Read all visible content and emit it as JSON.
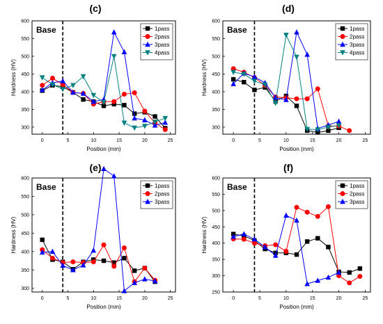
{
  "panels": [
    {
      "label": "(c)",
      "chart_data": {
        "type": "line",
        "annotation": "Base",
        "xlabel": "Position (mm)",
        "ylabel": "Hardness (HV)",
        "xlim": [
          -2,
          26
        ],
        "ylim": [
          280,
          600
        ],
        "xticks": [
          0,
          5,
          10,
          15,
          20,
          25
        ],
        "yticks": [
          300,
          350,
          400,
          450,
          500,
          550,
          600
        ],
        "base_line_x": 4,
        "legend_position": "top-right",
        "series": [
          {
            "name": "1pass",
            "color": "#000000",
            "marker": "square",
            "x": [
              0,
              2,
              4,
              6,
              8,
              10,
              12,
              14,
              16,
              18,
              20,
              22,
              24
            ],
            "y": [
              403,
              418,
              414,
              398,
              378,
              372,
              360,
              365,
              362,
              338,
              342,
              330,
              297
            ]
          },
          {
            "name": "2pass",
            "color": "#ff0000",
            "marker": "circle",
            "x": [
              0,
              2,
              4,
              6,
              8,
              10,
              12,
              14,
              16,
              18,
              20,
              22,
              24
            ],
            "y": [
              418,
              438,
              420,
              398,
              395,
              365,
              372,
              372,
              393,
              397,
              345,
              312,
              293
            ]
          },
          {
            "name": "3pass",
            "color": "#0000ff",
            "marker": "triangle-up",
            "x": [
              0,
              2,
              4,
              6,
              8,
              10,
              12,
              14,
              16,
              18,
              20,
              22,
              24
            ],
            "y": [
              405,
              425,
              430,
              398,
              395,
              372,
              378,
              568,
              512,
              325,
              320,
              305,
              313
            ]
          },
          {
            "name": "4pass",
            "color": "#008080",
            "marker": "triangle-down",
            "x": [
              0,
              2,
              4,
              6,
              8,
              10,
              12,
              14,
              16,
              18,
              20,
              22,
              24
            ],
            "y": [
              440,
              420,
              407,
              418,
              443,
              390,
              370,
              500,
              312,
              298,
              303,
              315,
              325
            ]
          }
        ]
      }
    },
    {
      "label": "(d)",
      "chart_data": {
        "type": "line",
        "annotation": "Base",
        "xlabel": "Position (mm)",
        "ylabel": "Hardness (HV)",
        "xlim": [
          -2,
          26
        ],
        "ylim": [
          280,
          600
        ],
        "xticks": [
          0,
          5,
          10,
          15,
          20,
          25
        ],
        "yticks": [
          300,
          350,
          400,
          450,
          500,
          550,
          600
        ],
        "base_line_x": 4,
        "legend_position": "top-right",
        "series": [
          {
            "name": "1pass",
            "color": "#000000",
            "marker": "square",
            "x": [
              0,
              2,
              4,
              6,
              8,
              10,
              12,
              14,
              16,
              18,
              20
            ],
            "y": [
              435,
              427,
              405,
              412,
              373,
              388,
              360,
              290,
              285,
              290,
              298
            ]
          },
          {
            "name": "2pass",
            "color": "#ff0000",
            "marker": "circle",
            "x": [
              0,
              2,
              4,
              6,
              8,
              10,
              12,
              14,
              16,
              18,
              20,
              22
            ],
            "y": [
              465,
              455,
              440,
              418,
              385,
              383,
              380,
              380,
              408,
              303,
              303,
              290
            ]
          },
          {
            "name": "3pass",
            "color": "#0000ff",
            "marker": "triangle-up",
            "x": [
              0,
              2,
              4,
              6,
              8,
              10,
              12,
              14,
              16,
              18,
              20
            ],
            "y": [
              422,
              452,
              442,
              425,
              383,
              377,
              568,
              505,
              296,
              306,
              316
            ]
          },
          {
            "name": "4pass",
            "color": "#008080",
            "marker": "triangle-down",
            "x": [
              0,
              2,
              4,
              6,
              8,
              10,
              12,
              14,
              16,
              18,
              20
            ],
            "y": [
              455,
              450,
              430,
              420,
              368,
              560,
              498,
              294,
              293,
              300,
              305
            ]
          }
        ]
      }
    },
    {
      "label": "(e)",
      "chart_data": {
        "type": "line",
        "annotation": "Base",
        "xlabel": "Position (mm)",
        "ylabel": "Hardness (HV)",
        "xlim": [
          -2,
          26
        ],
        "ylim": [
          290,
          600
        ],
        "xticks": [
          0,
          5,
          10,
          15,
          20,
          25
        ],
        "yticks": [
          300,
          350,
          400,
          450,
          500,
          550,
          600
        ],
        "base_line_x": 4,
        "legend_position": "top-right",
        "series": [
          {
            "name": "1pass",
            "color": "#000000",
            "marker": "square",
            "x": [
              0,
              2,
              4,
              6,
              8,
              10,
              12,
              14,
              16,
              18,
              20,
              22
            ],
            "y": [
              432,
              378,
              372,
              352,
              372,
              378,
              375,
              370,
              382,
              348,
              355,
              318
            ]
          },
          {
            "name": "2pass",
            "color": "#ff0000",
            "marker": "circle",
            "x": [
              0,
              2,
              4,
              6,
              8,
              10,
              12,
              14,
              16,
              18,
              20,
              22
            ],
            "y": [
              405,
              382,
              370,
              372,
              370,
              372,
              418,
              360,
              410,
              318,
              355,
              322
            ]
          },
          {
            "name": "3pass",
            "color": "#0000ff",
            "marker": "triangle-up",
            "x": [
              0,
              2,
              4,
              6,
              8,
              10,
              12,
              14,
              16,
              18,
              20,
              22
            ],
            "y": [
              398,
              400,
              362,
              350,
              363,
              403,
              625,
              605,
              293,
              315,
              325,
              320
            ]
          }
        ]
      }
    },
    {
      "label": "(f)",
      "chart_data": {
        "type": "line",
        "annotation": "Base",
        "xlabel": "Position (mm)",
        "ylabel": "Hardness (HV)",
        "xlim": [
          -2,
          26
        ],
        "ylim": [
          250,
          600
        ],
        "xticks": [
          0,
          5,
          10,
          15,
          20,
          25
        ],
        "yticks": [
          250,
          300,
          350,
          400,
          450,
          500,
          550,
          600
        ],
        "base_line_x": 4,
        "legend_position": "top-right",
        "series": [
          {
            "name": "1pass",
            "color": "#000000",
            "marker": "square",
            "x": [
              0,
              2,
              4,
              6,
              8,
              10,
              12,
              14,
              16,
              18,
              20,
              22,
              24
            ],
            "y": [
              428,
              422,
              408,
              382,
              370,
              370,
              365,
              405,
              415,
              388,
              312,
              310,
              322
            ]
          },
          {
            "name": "2pass",
            "color": "#ff0000",
            "marker": "circle",
            "x": [
              0,
              2,
              4,
              6,
              8,
              10,
              12,
              14,
              16,
              18,
              20,
              22,
              24
            ],
            "y": [
              413,
              412,
              400,
              392,
              395,
              375,
              510,
              495,
              482,
              512,
              300,
              278,
              298
            ]
          },
          {
            "name": "3pass",
            "color": "#0000ff",
            "marker": "triangle-up",
            "x": [
              0,
              2,
              4,
              6,
              8,
              10,
              12,
              14,
              16,
              18,
              20
            ],
            "y": [
              420,
              428,
              412,
              388,
              362,
              485,
              470,
              275,
              285,
              295,
              310
            ]
          }
        ]
      }
    }
  ]
}
